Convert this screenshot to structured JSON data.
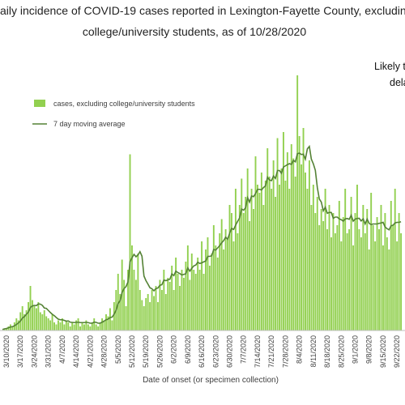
{
  "chart_data": {
    "type": "bar",
    "title": [
      "aily incidence of COVID-19 cases reported in Lexington-Fayette County, excluding",
      "college/university students, as of 10/28/2020"
    ],
    "annotation": [
      "Likely to",
      "dela"
    ],
    "x_label": "Date of onset (or specimen collection)",
    "categories": [
      null,
      null,
      "3/10/2020",
      null,
      null,
      null,
      null,
      null,
      null,
      "3/17/2020",
      null,
      null,
      null,
      null,
      null,
      null,
      "3/24/2020",
      null,
      null,
      null,
      null,
      null,
      null,
      "3/31/2020",
      null,
      null,
      null,
      null,
      null,
      null,
      "4/7/2020",
      null,
      null,
      null,
      null,
      null,
      null,
      "4/14/2020",
      null,
      null,
      null,
      null,
      null,
      null,
      "4/21/2020",
      null,
      null,
      null,
      null,
      null,
      null,
      "4/28/2020",
      null,
      null,
      null,
      null,
      null,
      null,
      "5/5/2020",
      null,
      null,
      null,
      null,
      null,
      null,
      "5/12/2020",
      null,
      null,
      null,
      null,
      null,
      null,
      "5/19/2020",
      null,
      null,
      null,
      null,
      null,
      null,
      "5/26/2020",
      null,
      null,
      null,
      null,
      null,
      null,
      "6/2/2020",
      null,
      null,
      null,
      null,
      null,
      null,
      "6/9/2020",
      null,
      null,
      null,
      null,
      null,
      null,
      "6/16/2020",
      null,
      null,
      null,
      null,
      null,
      null,
      "6/23/2020",
      null,
      null,
      null,
      null,
      null,
      null,
      "6/30/2020",
      null,
      null,
      null,
      null,
      null,
      null,
      "7/7/2020",
      null,
      null,
      null,
      null,
      null,
      null,
      "7/14/2020",
      null,
      null,
      null,
      null,
      null,
      null,
      "7/21/2020",
      null,
      null,
      null,
      null,
      null,
      null,
      "7/28/2020",
      null,
      null,
      null,
      null,
      null,
      null,
      "8/4/2020",
      null,
      null,
      null,
      null,
      null,
      null,
      "8/11/2020",
      null,
      null,
      null,
      null,
      null,
      null,
      "8/18/2020",
      null,
      null,
      null,
      null,
      null,
      null,
      "8/25/2020",
      null,
      null,
      null,
      null,
      null,
      null,
      "9/1/2020",
      null,
      null,
      null,
      null,
      null,
      null,
      "9/8/2020",
      null,
      null,
      null,
      null,
      null,
      null,
      "9/15/2020",
      null,
      null,
      null,
      null,
      null,
      null,
      "9/22/2020",
      null,
      null
    ],
    "series": [
      {
        "name": "cases, excluding college/university students",
        "color": "#92d050",
        "values": [
          0,
          1,
          1,
          2,
          3,
          2,
          4,
          6,
          5,
          9,
          12,
          8,
          10,
          14,
          22,
          15,
          12,
          11,
          14,
          9,
          8,
          10,
          7,
          6,
          5,
          8,
          4,
          3,
          5,
          4,
          6,
          3,
          5,
          4,
          2,
          4,
          3,
          5,
          6,
          2,
          4,
          3,
          5,
          3,
          2,
          4,
          6,
          3,
          2,
          4,
          6,
          5,
          8,
          7,
          11,
          5,
          14,
          20,
          28,
          18,
          35,
          25,
          12,
          30,
          87,
          42,
          30,
          25,
          38,
          20,
          15,
          12,
          16,
          18,
          14,
          20,
          17,
          22,
          14,
          25,
          20,
          30,
          18,
          26,
          24,
          32,
          20,
          36,
          28,
          22,
          30,
          26,
          34,
          42,
          25,
          38,
          30,
          28,
          36,
          30,
          44,
          28,
          40,
          46,
          32,
          38,
          52,
          42,
          36,
          48,
          55,
          40,
          50,
          45,
          62,
          58,
          44,
          70,
          48,
          62,
          75,
          58,
          66,
          80,
          54,
          70,
          60,
          86,
          72,
          68,
          78,
          62,
          74,
          90,
          76,
          70,
          84,
          66,
          95,
          72,
          80,
          98,
          74,
          88,
          70,
          92,
          85,
          76,
          126,
          96,
          82,
          100,
          78,
          70,
          84,
          62,
          72,
          58,
          66,
          52,
          60,
          54,
          70,
          50,
          62,
          46,
          58,
          48,
          52,
          64,
          44,
          56,
          70,
          48,
          50,
          66,
          42,
          58,
          72,
          50,
          46,
          62,
          48,
          60,
          40,
          68,
          52,
          44,
          56,
          50,
          62,
          42,
          58,
          46,
          40,
          64,
          52,
          70,
          44,
          58,
          48
        ]
      },
      {
        "name": "7 day moving average",
        "color": "#548235",
        "values": [
          0.5,
          0.8,
          1,
          1.3,
          1.7,
          1.9,
          2.3,
          3,
          3.7,
          4.7,
          6.1,
          6.9,
          8,
          9.1,
          11.4,
          12.1,
          12.4,
          12.3,
          13.1,
          13,
          12.4,
          11.1,
          10.9,
          9.9,
          8.9,
          8,
          7.3,
          6.4,
          5.6,
          5.3,
          5.3,
          5,
          4.6,
          4.7,
          4.1,
          4,
          3.9,
          4,
          4.1,
          3.9,
          3.9,
          3.9,
          4,
          3.9,
          3.6,
          3.6,
          4.1,
          4,
          3.6,
          3.6,
          4.1,
          4.6,
          5.3,
          5.6,
          6.4,
          6.6,
          8,
          10,
          13.3,
          14.7,
          18.7,
          20.7,
          21.7,
          24,
          33.9,
          35.9,
          37.6,
          36.4,
          37.3,
          38.9,
          36.7,
          26.9,
          24.6,
          22.9,
          21.1,
          20.6,
          19.6,
          20.7,
          21,
          22.3,
          22.6,
          24.9,
          24.6,
          25,
          25.3,
          27.9,
          27.1,
          29.3,
          28.6,
          28.1,
          27.4,
          27.7,
          28,
          30.9,
          29.3,
          30.7,
          31.9,
          32.3,
          33.7,
          33.1,
          33.4,
          33.9,
          34.3,
          36.6,
          36.6,
          36.9,
          40,
          39.7,
          40.8,
          41.9,
          43.3,
          44.4,
          46.1,
          45.1,
          48,
          50.4,
          49.9,
          52,
          53.9,
          55.6,
          60,
          59.4,
          60.6,
          65.6,
          63.4,
          66.4,
          66.1,
          67.6,
          69.7,
          69.7,
          69.4,
          70.6,
          71.4,
          75.7,
          74.3,
          74,
          76.3,
          75.1,
          79,
          79,
          77.6,
          80.7,
          81.3,
          81.9,
          82.4,
          82,
          84,
          83.3,
          87.3,
          87.6,
          86.9,
          87.1,
          84.6,
          89.7,
          90.9,
          84.6,
          82.3,
          79.1,
          70.6,
          64.9,
          63.4,
          59.1,
          60.9,
          57.9,
          58.3,
          58.3,
          55.4,
          56,
          56,
          55.1,
          54.7,
          54,
          55.1,
          55.3,
          54.9,
          56.9,
          54,
          55,
          55.3,
          55.4,
          54.1,
          55.1,
          52.6,
          55,
          52.9,
          52.3,
          52.6,
          52.6,
          52.6,
          52.9,
          53.1,
          53.4,
          51.1,
          50.3,
          49.7,
          51.7,
          52,
          53.1,
          53.4,
          53.4,
          53.7
        ]
      }
    ],
    "ylim": [
      0,
      160
    ]
  }
}
